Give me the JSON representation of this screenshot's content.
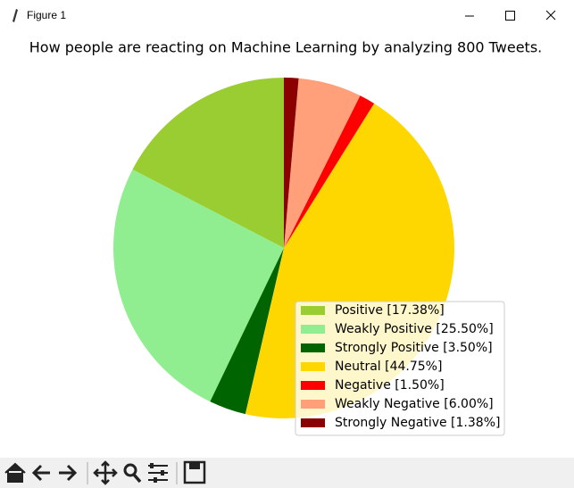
{
  "window_title": "Figure 1",
  "chart_data": {
    "type": "pie",
    "title": "How people are reacting on Machine Learning by analyzing 800 Tweets.",
    "categories": [
      "Positive [17.38%]",
      "Weakly Positive [25.50%]",
      "Strongly Positive [3.50%]",
      "Neutral [44.75%]",
      "Negative [1.50%]",
      "Weakly Negative [6.00%]",
      "Strongly Negative [1.38%]"
    ],
    "values": [
      17.38,
      25.5,
      3.5,
      44.75,
      1.5,
      6,
      1.38
    ],
    "colors": [
      "#9acd32",
      "#90ee90",
      "#006400",
      "#ffd700",
      "#ff0000",
      "#ffa07a",
      "#8b0000"
    ],
    "start_angle": 90,
    "legend": "lower right"
  }
}
